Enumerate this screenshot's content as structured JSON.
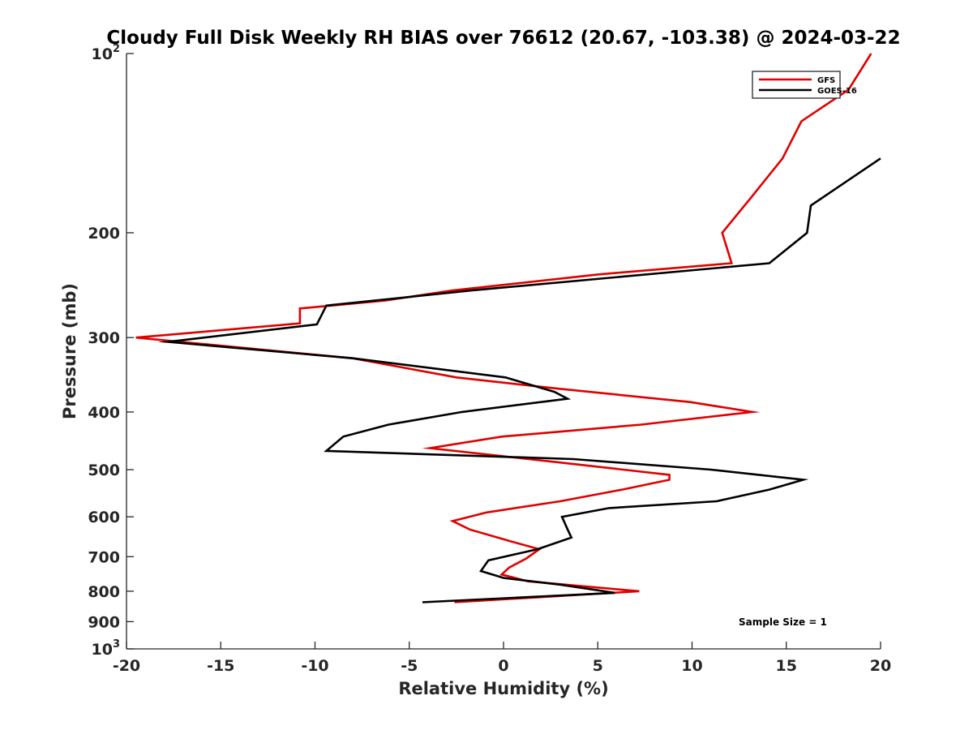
{
  "chart_data": {
    "type": "line",
    "title": "Cloudy Full Disk Weekly RH BIAS over 76612 (20.67, -103.38) @ 2024-03-22",
    "xlabel": "Relative Humidity (%)",
    "ylabel": "Pressure (mb)",
    "xlim": [
      -20,
      20
    ],
    "ylim": [
      100,
      1000
    ],
    "yscale": "log",
    "y_reversed": true,
    "xticks": [
      -20,
      -15,
      -10,
      -5,
      0,
      5,
      10,
      15,
      20
    ],
    "xtick_labels": [
      "-20",
      "-15",
      "-10",
      "-5",
      "0",
      "5",
      "10",
      "15",
      "20"
    ],
    "yticks": [
      {
        "value": 100,
        "base": "10",
        "exp": "2"
      },
      {
        "value": 200,
        "label": "200"
      },
      {
        "value": 300,
        "label": "300"
      },
      {
        "value": 400,
        "label": "400"
      },
      {
        "value": 500,
        "label": "500"
      },
      {
        "value": 600,
        "label": "600"
      },
      {
        "value": 700,
        "label": "700"
      },
      {
        "value": 800,
        "label": "800"
      },
      {
        "value": 900,
        "label": "900"
      },
      {
        "value": 1000,
        "base": "10",
        "exp": "3"
      }
    ],
    "legend_location": "top-right",
    "annotation": "Sample Size = 1",
    "series": [
      {
        "name": "GFS",
        "color": "#e00000",
        "points": [
          [
            19.5,
            100
          ],
          [
            18.3,
            115
          ],
          [
            15.8,
            130
          ],
          [
            14.8,
            150
          ],
          [
            13.1,
            175
          ],
          [
            11.6,
            200
          ],
          [
            12.1,
            225
          ],
          [
            5.0,
            235
          ],
          [
            -2.7,
            250
          ],
          [
            -6.3,
            260
          ],
          [
            -10.8,
            268
          ],
          [
            -10.8,
            284
          ],
          [
            -19.5,
            300
          ],
          [
            -8.0,
            325
          ],
          [
            -2.5,
            350
          ],
          [
            2.7,
            365
          ],
          [
            9.9,
            385
          ],
          [
            13.2,
            400
          ],
          [
            7.3,
            420
          ],
          [
            -0.1,
            440
          ],
          [
            -3.9,
            460
          ],
          [
            3.9,
            490
          ],
          [
            8.8,
            510
          ],
          [
            8.8,
            520
          ],
          [
            6.3,
            540
          ],
          [
            3.0,
            565
          ],
          [
            -0.9,
            590
          ],
          [
            -2.7,
            610
          ],
          [
            -1.8,
            630
          ],
          [
            0.4,
            660
          ],
          [
            1.9,
            680
          ],
          [
            1.2,
            705
          ],
          [
            0.3,
            730
          ],
          [
            -0.1,
            750
          ],
          [
            1.3,
            770
          ],
          [
            7.2,
            800
          ],
          [
            -2.6,
            835
          ]
        ]
      },
      {
        "name": "GOES-16",
        "color": "#000000",
        "points": [
          [
            20.0,
            150
          ],
          [
            16.3,
            180
          ],
          [
            16.1,
            200
          ],
          [
            14.1,
            225
          ],
          [
            -1.7,
            250
          ],
          [
            -9.4,
            265
          ],
          [
            -9.9,
            285
          ],
          [
            -17.8,
            305
          ],
          [
            -8.0,
            325
          ],
          [
            0.1,
            350
          ],
          [
            2.7,
            370
          ],
          [
            3.4,
            380
          ],
          [
            -2.2,
            400
          ],
          [
            -6.1,
            420
          ],
          [
            -8.5,
            440
          ],
          [
            -9.4,
            465
          ],
          [
            3.7,
            480
          ],
          [
            11.0,
            500
          ],
          [
            15.9,
            520
          ],
          [
            14.1,
            540
          ],
          [
            11.3,
            565
          ],
          [
            5.6,
            580
          ],
          [
            3.1,
            600
          ],
          [
            3.4,
            630
          ],
          [
            3.6,
            650
          ],
          [
            1.8,
            680
          ],
          [
            -0.8,
            710
          ],
          [
            -1.2,
            740
          ],
          [
            0.0,
            760
          ],
          [
            3.0,
            780
          ],
          [
            5.9,
            805
          ],
          [
            -4.3,
            835
          ]
        ]
      }
    ]
  }
}
